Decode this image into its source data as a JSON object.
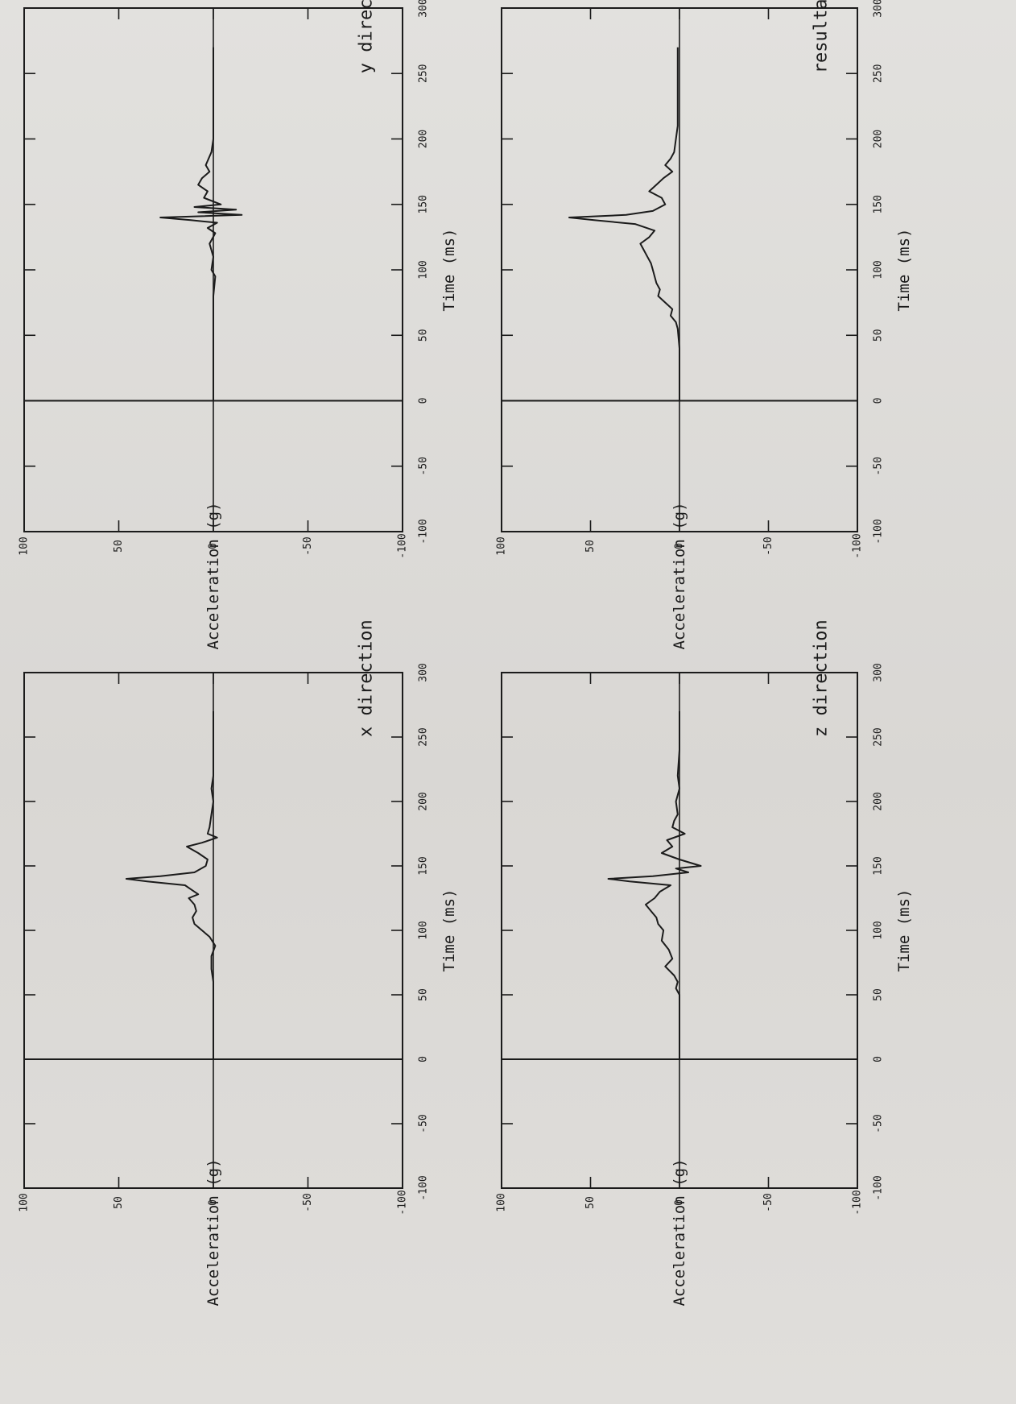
{
  "figure": {
    "orientation": "rotated-90-clockwise",
    "line_color": "#1b1b1b",
    "background_color": "#dedcd9"
  },
  "chart_data": [
    {
      "type": "line",
      "title": "x direction",
      "xlabel": "Time (ms)",
      "ylabel": "Acceleration (g)",
      "xlim": [
        -100,
        300
      ],
      "ylim": [
        -100,
        100
      ],
      "x_ticks": [
        -100,
        -50,
        0,
        50,
        100,
        150,
        200,
        250,
        300
      ],
      "x_tick_labels": [
        "-100",
        "-50",
        "0",
        "50",
        "100",
        "150",
        "200",
        "250",
        "300"
      ],
      "y_ticks": [
        -100,
        -50,
        0,
        50,
        100
      ],
      "y_tick_labels": [
        "-100",
        "-50",
        "0",
        "50",
        "100"
      ],
      "grid": false,
      "zero_lines": true,
      "series": [
        {
          "x": [
            0,
            20,
            40,
            60,
            70,
            80,
            88,
            95,
            100,
            105,
            110,
            115,
            120,
            125,
            128,
            132,
            135,
            138,
            140,
            142,
            145,
            150,
            155,
            160,
            165,
            168,
            172,
            175,
            180,
            190,
            200,
            210,
            220,
            240,
            260,
            270
          ],
          "values": [
            0,
            0,
            0,
            0,
            1,
            1,
            -1,
            2,
            6,
            10,
            11,
            9,
            10,
            13,
            8,
            12,
            15,
            35,
            46,
            28,
            10,
            4,
            3,
            8,
            14,
            6,
            -2,
            3,
            2,
            1,
            0,
            1,
            0,
            0,
            0,
            0
          ]
        }
      ]
    },
    {
      "type": "line",
      "title": "y direction",
      "xlabel": "Time (ms)",
      "ylabel": "Acceleration (g)",
      "xlim": [
        -100,
        300
      ],
      "ylim": [
        -100,
        100
      ],
      "x_ticks": [
        -100,
        -50,
        0,
        50,
        100,
        150,
        200,
        250,
        300
      ],
      "x_tick_labels": [
        "-100",
        "-50",
        "0",
        "50",
        "100",
        "150",
        "200",
        "250",
        "300"
      ],
      "y_ticks": [
        -100,
        -50,
        0,
        50,
        100
      ],
      "y_tick_labels": [
        "-100",
        "-50",
        "0",
        "50",
        "100"
      ],
      "grid": false,
      "zero_lines": true,
      "series": [
        {
          "x": [
            0,
            20,
            40,
            60,
            80,
            95,
            100,
            110,
            120,
            128,
            132,
            136,
            138,
            140,
            142,
            144,
            146,
            148,
            150,
            155,
            160,
            165,
            170,
            175,
            180,
            190,
            200,
            220,
            240,
            260,
            270
          ],
          "values": [
            0,
            0,
            0,
            0,
            0,
            -1,
            1,
            0,
            2,
            -1,
            3,
            -2,
            12,
            28,
            -15,
            8,
            -12,
            10,
            -4,
            5,
            3,
            8,
            6,
            2,
            4,
            1,
            0,
            0,
            0,
            0,
            0
          ]
        }
      ]
    },
    {
      "type": "line",
      "title": "z direction",
      "xlabel": "Time (ms)",
      "ylabel": "Acceleration (g)",
      "xlim": [
        -100,
        300
      ],
      "ylim": [
        -100,
        100
      ],
      "x_ticks": [
        -100,
        -50,
        0,
        50,
        100,
        150,
        200,
        250,
        300
      ],
      "x_tick_labels": [
        "-100",
        "-50",
        "0",
        "50",
        "100",
        "150",
        "200",
        "250",
        "300"
      ],
      "y_ticks": [
        -100,
        -50,
        0,
        50,
        100
      ],
      "y_tick_labels": [
        "-100",
        "-50",
        "0",
        "50",
        "100"
      ],
      "grid": false,
      "zero_lines": true,
      "series": [
        {
          "x": [
            0,
            20,
            40,
            50,
            55,
            60,
            65,
            72,
            78,
            85,
            92,
            100,
            105,
            110,
            115,
            120,
            125,
            130,
            135,
            138,
            140,
            142,
            145,
            148,
            150,
            155,
            160,
            165,
            170,
            175,
            180,
            185,
            190,
            200,
            210,
            220,
            240,
            260,
            270
          ],
          "values": [
            0,
            0,
            0,
            0,
            2,
            1,
            3,
            8,
            4,
            6,
            10,
            9,
            12,
            13,
            16,
            19,
            14,
            11,
            5,
            28,
            40,
            15,
            -5,
            2,
            -12,
            0,
            10,
            4,
            7,
            -3,
            4,
            3,
            1,
            2,
            0,
            1,
            0,
            0,
            0
          ]
        }
      ]
    },
    {
      "type": "line",
      "title": "resultant",
      "xlabel": "Time (ms)",
      "ylabel": "Acceleration (g)",
      "xlim": [
        -100,
        300
      ],
      "ylim": [
        -100,
        100
      ],
      "x_ticks": [
        -100,
        -50,
        0,
        50,
        100,
        150,
        200,
        250,
        300
      ],
      "x_tick_labels": [
        "-100",
        "-50",
        "0",
        "50",
        "100",
        "150",
        "200",
        "250",
        "300"
      ],
      "y_ticks": [
        -100,
        -50,
        0,
        50,
        100
      ],
      "y_tick_labels": [
        "-100",
        "-50",
        "0",
        "50",
        "100"
      ],
      "grid": false,
      "zero_lines": true,
      "series": [
        {
          "x": [
            0,
            20,
            40,
            55,
            60,
            65,
            70,
            75,
            80,
            85,
            90,
            95,
            100,
            105,
            110,
            115,
            120,
            125,
            130,
            135,
            138,
            140,
            142,
            145,
            150,
            155,
            160,
            165,
            170,
            175,
            180,
            185,
            190,
            200,
            210,
            220,
            240,
            260,
            270
          ],
          "values": [
            0,
            0,
            0,
            1,
            2,
            5,
            4,
            8,
            12,
            11,
            13,
            14,
            15,
            16,
            18,
            20,
            22,
            17,
            14,
            25,
            48,
            62,
            30,
            15,
            8,
            10,
            17,
            13,
            9,
            4,
            8,
            5,
            3,
            2,
            1,
            1,
            1,
            1,
            1
          ]
        }
      ]
    }
  ]
}
